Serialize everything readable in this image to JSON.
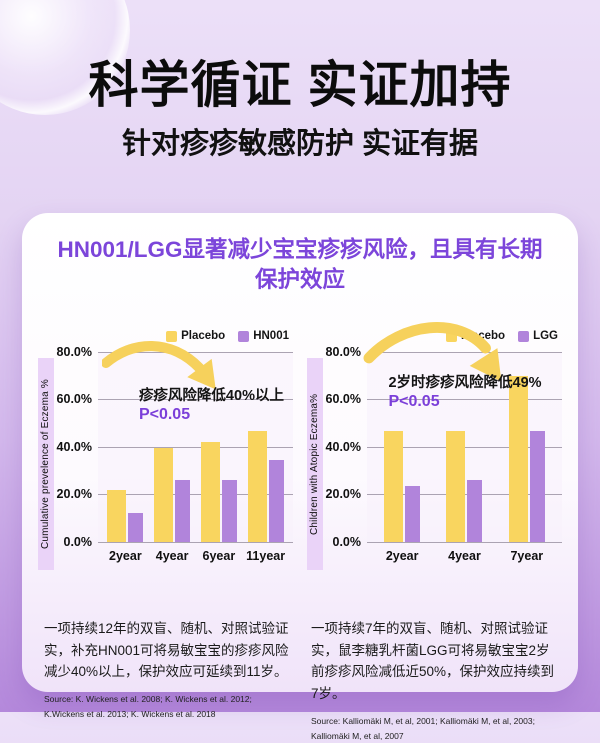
{
  "header": {
    "title": "科学循证 实证加持",
    "subtitle": "针对疹疹敏感防护 实证有据"
  },
  "card": {
    "title": "HN001/LGG显著减少宝宝疹疹风险，且具有长期保护效应"
  },
  "chart_data": [
    {
      "type": "bar",
      "ylabel": "Cumulative prevelence of Eczema %",
      "annotation": "疹疹风险降低40%以上",
      "p_value": "P<0.05",
      "categories": [
        "2year",
        "4year",
        "6year",
        "11year"
      ],
      "series": [
        {
          "name": "Placebo",
          "color": "#F9D55F",
          "values": [
            22,
            39.5,
            42,
            46.5
          ]
        },
        {
          "name": "HN001",
          "color": "#B184DB",
          "values": [
            12,
            26,
            26,
            34.5
          ]
        }
      ],
      "yticks": [
        "80.0%",
        "60.0%",
        "40.0%",
        "20.0%",
        "0.0%"
      ],
      "ylim": [
        0,
        80
      ],
      "grid": true,
      "legend_position": "top-right"
    },
    {
      "type": "bar",
      "ylabel": "Children with Atopic Eczema%",
      "annotation": "2岁时疹疹风险降低49%",
      "p_value": "P<0.05",
      "categories": [
        "2year",
        "4year",
        "7year"
      ],
      "series": [
        {
          "name": "Placebo",
          "color": "#F9D55F",
          "values": [
            46.5,
            46.5,
            70
          ]
        },
        {
          "name": "LGG",
          "color": "#B184DB",
          "values": [
            23.5,
            26,
            46.5
          ]
        }
      ],
      "yticks": [
        "80.0%",
        "60.0%",
        "40.0%",
        "20.0%",
        "0.0%"
      ],
      "ylim": [
        0,
        80
      ],
      "grid": true,
      "legend_position": "top-right"
    }
  ],
  "footnotes": [
    {
      "text": "一项持续12年的双盲、随机、对照试验证实，补充HN001可将易敏宝宝的疹疹风险减少40%以上，保护效应可延续到11岁。",
      "source": "Source: K. Wickens et al. 2008; K. Wickens et al. 2012; K.Wickens et al. 2013; K. Wickens et al. 2018"
    },
    {
      "text": "一项持续7年的双盲、随机、对照试验证实，鼠李糖乳杆菌LGG可将易敏宝宝2岁前疹疹风险减低近50%，保护效应持续到7岁。",
      "source": "Source: Kalliomäki M, et al, 2001; Kalliomäki M, et al, 2003; Kalliomäki M, et al, 2007"
    }
  ],
  "colors": {
    "accent_purple": "#7C45DA",
    "bar_yellow": "#F9D55F",
    "bar_purple": "#B184DB",
    "p_value_purple": "#7B3FD9",
    "arrow_yellow": "#F6D15C"
  }
}
